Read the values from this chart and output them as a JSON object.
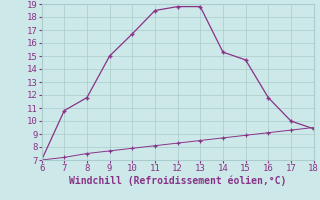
{
  "xlabel": "Windchill (Refroidissement éolien,°C)",
  "line1_x": [
    6,
    7,
    8,
    9,
    10,
    11,
    12,
    13,
    14,
    15,
    16,
    17,
    18
  ],
  "line1_y": [
    7.0,
    10.8,
    11.8,
    15.0,
    16.7,
    18.5,
    18.8,
    18.8,
    15.3,
    14.7,
    11.8,
    10.0,
    9.4
  ],
  "line2_x": [
    6,
    7,
    8,
    9,
    10,
    11,
    12,
    13,
    14,
    15,
    16,
    17,
    18
  ],
  "line2_y": [
    7.0,
    7.2,
    7.5,
    7.7,
    7.9,
    8.1,
    8.3,
    8.5,
    8.7,
    8.9,
    9.1,
    9.3,
    9.5
  ],
  "line_color": "#883388",
  "bg_color": "#cce8e8",
  "grid_color": "#aacccc",
  "text_color": "#883388",
  "xlim": [
    6,
    18
  ],
  "ylim": [
    7,
    19
  ],
  "xticks": [
    6,
    7,
    8,
    9,
    10,
    11,
    12,
    13,
    14,
    15,
    16,
    17,
    18
  ],
  "yticks": [
    7,
    8,
    9,
    10,
    11,
    12,
    13,
    14,
    15,
    16,
    17,
    18,
    19
  ],
  "tick_fontsize": 6.5,
  "xlabel_fontsize": 7.0,
  "marker": "+"
}
